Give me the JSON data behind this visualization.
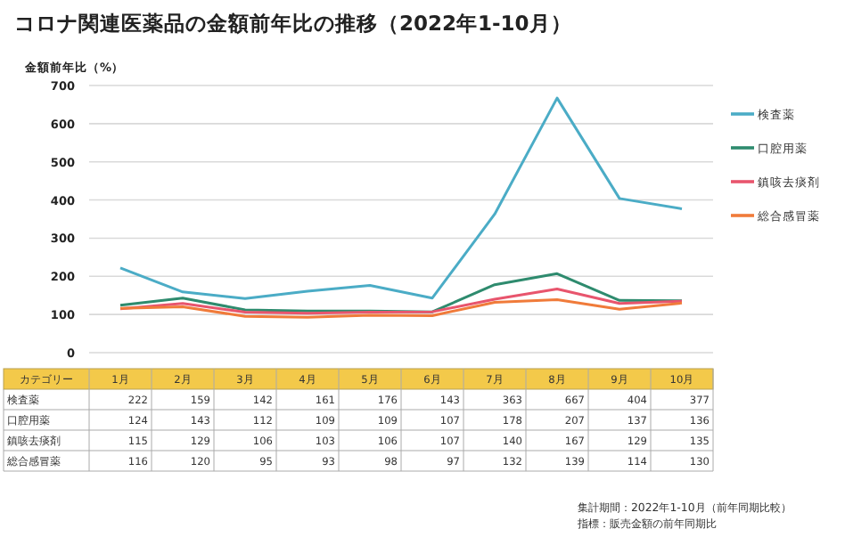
{
  "chart_data": {
    "type": "line",
    "title": "コロナ関連医薬品の金額前年比の推移（2022年1-10月）",
    "ylabel": "金額前年比（%）",
    "categories": [
      "1月",
      "2月",
      "3月",
      "4月",
      "5月",
      "6月",
      "7月",
      "8月",
      "9月",
      "10月"
    ],
    "series": [
      {
        "name": "検査薬",
        "color": "#4bacc6",
        "values": [
          222,
          159,
          142,
          161,
          176,
          143,
          363,
          667,
          404,
          377
        ]
      },
      {
        "name": "口腔用薬",
        "color": "#2e8b6e",
        "values": [
          124,
          143,
          112,
          109,
          109,
          107,
          178,
          207,
          137,
          136
        ]
      },
      {
        "name": "鎮咳去痰剤",
        "color": "#e8556d",
        "values": [
          115,
          129,
          106,
          103,
          106,
          107,
          140,
          167,
          129,
          135
        ]
      },
      {
        "name": "総合感冒薬",
        "color": "#f07b3a",
        "values": [
          116,
          120,
          95,
          93,
          98,
          97,
          132,
          139,
          114,
          130
        ]
      }
    ],
    "ylim": [
      0,
      700
    ],
    "yticks": [
      0,
      100,
      200,
      300,
      400,
      500,
      600,
      700
    ],
    "grid": "y",
    "legend": "right",
    "data_labels": true,
    "marker": "none",
    "line_style": "solid",
    "annotations": [
      "カテゴリー",
      "集計期間：2022年1-10月（前年同期比較）",
      "指標：販売金額の前年同期比"
    ]
  }
}
